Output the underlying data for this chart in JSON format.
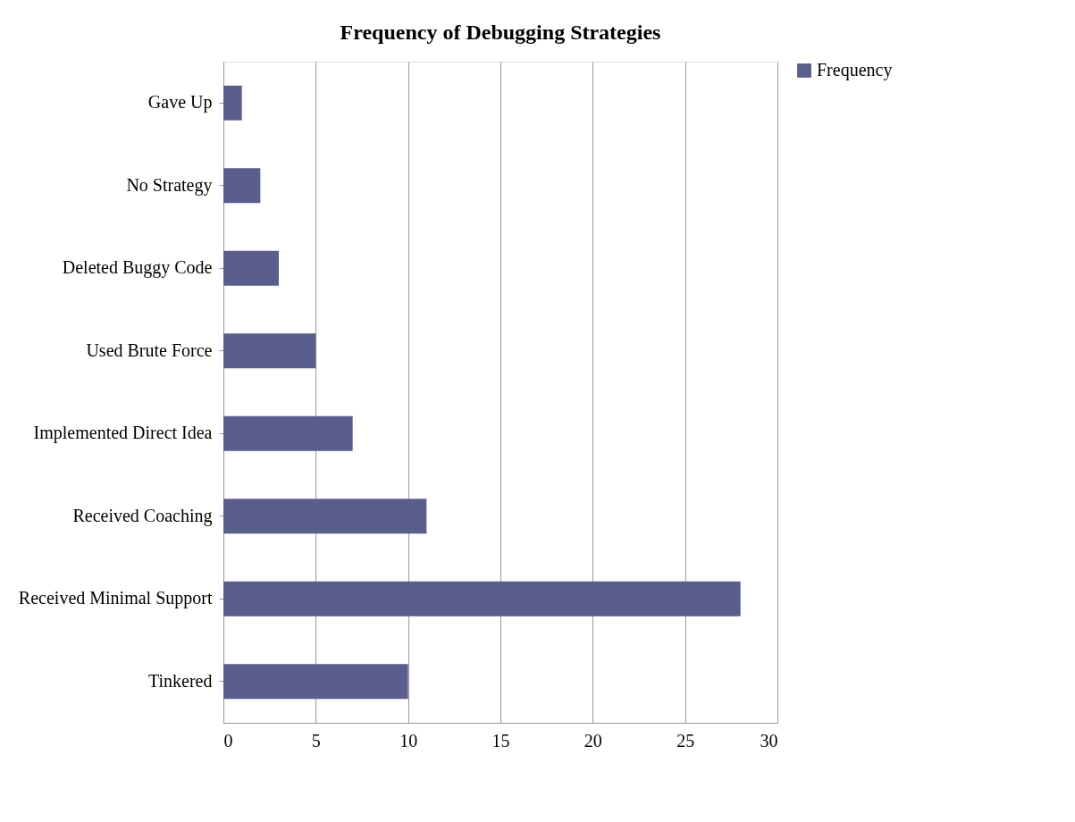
{
  "chart_data": {
    "type": "bar",
    "orientation": "horizontal",
    "title": "Frequency of Debugging Strategies",
    "categories": [
      "Gave Up",
      "No Strategy",
      "Deleted Buggy Code",
      "Used Brute Force",
      "Implemented Direct Idea",
      "Received Coaching",
      "Received Minimal Support",
      "Tinkered"
    ],
    "series": [
      {
        "name": "Frequency",
        "color": "#5a5e8d",
        "values": [
          1,
          2,
          3,
          5,
          7,
          11,
          28,
          10
        ]
      }
    ],
    "xlim": [
      0,
      30
    ],
    "xticks": [
      0,
      5,
      10,
      15,
      20,
      25,
      30
    ],
    "grid": "x",
    "legend": "right"
  }
}
